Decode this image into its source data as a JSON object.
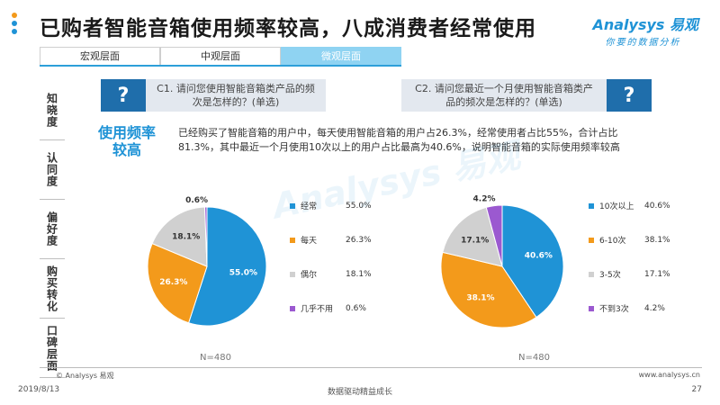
{
  "title": "已购者智能音箱使用频率较高，八成消费者经常使用",
  "logo": {
    "main": "Analysys 易观",
    "sub": "你要的数据分析"
  },
  "tabs": [
    {
      "label": "宏观层面",
      "active": false
    },
    {
      "label": "中观层面",
      "active": false
    },
    {
      "label": "微观层面",
      "active": true
    }
  ],
  "sidebar": [
    {
      "label": "知晓度"
    },
    {
      "label": "认同度"
    },
    {
      "label": "偏好度"
    },
    {
      "label": "购买转化"
    },
    {
      "label": "口碑层面"
    }
  ],
  "questions": {
    "q1": {
      "mark": "?",
      "text": "C1. 请问您使用智能音箱类产品的频次是怎样的？(单选)"
    },
    "q2": {
      "mark": "?",
      "text": "C2. 请问您最近一个月使用智能音箱类产品的频次是怎样的？(单选)"
    }
  },
  "section_heading": "使用频率较高",
  "description": "已经购买了智能音箱的用户中，每天使用智能音箱的用户占26.3%，经常使用者占比55%，合计占比81.3%，其中最近一个月使用10次以上的用户占比最高为40.6%，说明智能音箱的实际使用频率较高",
  "watermark": "Analysys 易观 你要的数据分析",
  "chart_data": [
    {
      "type": "pie",
      "note": "N=480",
      "series": [
        {
          "name": "经常",
          "value": 55.0,
          "label": "55.0%",
          "color": "#1f93d6"
        },
        {
          "name": "每天",
          "value": 26.3,
          "label": "26.3%",
          "color": "#f39a1b"
        },
        {
          "name": "偶尔",
          "value": 18.1,
          "label": "18.1%",
          "color": "#d0d0d0"
        },
        {
          "name": "几乎不用",
          "value": 0.6,
          "label": "0.6%",
          "color": "#9b59d0"
        }
      ]
    },
    {
      "type": "pie",
      "note": "N=480",
      "series": [
        {
          "name": "10次以上",
          "value": 40.6,
          "label": "40.6%",
          "color": "#1f93d6"
        },
        {
          "name": "6-10次",
          "value": 38.1,
          "label": "38.1%",
          "color": "#f39a1b"
        },
        {
          "name": "3-5次",
          "value": 17.1,
          "label": "17.1%",
          "color": "#d0d0d0"
        },
        {
          "name": "不到3次",
          "value": 4.2,
          "label": "4.2%",
          "color": "#9b59d0"
        }
      ]
    }
  ],
  "footer": {
    "copyright": "© Analysys 易观",
    "url": "www.analysys.cn",
    "date": "2019/8/13",
    "slogan": "数据驱动精益成长",
    "page": "27"
  },
  "colors": {
    "accent": "#1f93d6",
    "dark_blue": "#1f6eab",
    "orange": "#f39a1b"
  }
}
